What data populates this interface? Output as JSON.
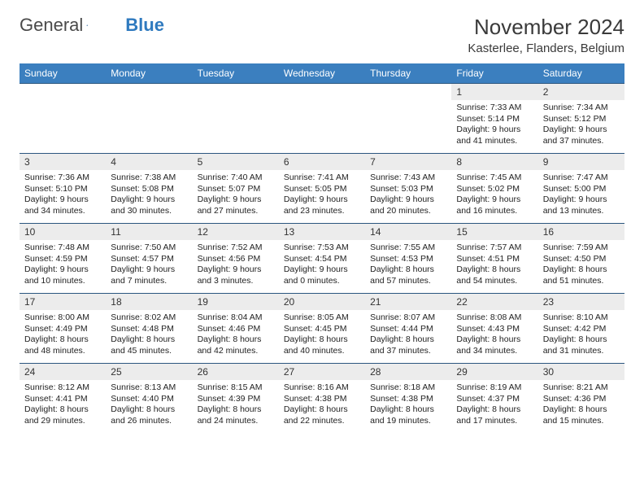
{
  "logo": {
    "text1": "General",
    "text2": "Blue"
  },
  "title": "November 2024",
  "location": "Kasterlee, Flanders, Belgium",
  "header_bg": "#3b7fbf",
  "row_border": "#2b567f",
  "daynum_bg": "#ececec",
  "text_color": "#222222",
  "page_bg": "#ffffff",
  "weekdays": [
    "Sunday",
    "Monday",
    "Tuesday",
    "Wednesday",
    "Thursday",
    "Friday",
    "Saturday"
  ],
  "weeks": [
    [
      null,
      null,
      null,
      null,
      null,
      {
        "n": "1",
        "sr": "7:33 AM",
        "ss": "5:14 PM",
        "dl": "9 hours and 41 minutes."
      },
      {
        "n": "2",
        "sr": "7:34 AM",
        "ss": "5:12 PM",
        "dl": "9 hours and 37 minutes."
      }
    ],
    [
      {
        "n": "3",
        "sr": "7:36 AM",
        "ss": "5:10 PM",
        "dl": "9 hours and 34 minutes."
      },
      {
        "n": "4",
        "sr": "7:38 AM",
        "ss": "5:08 PM",
        "dl": "9 hours and 30 minutes."
      },
      {
        "n": "5",
        "sr": "7:40 AM",
        "ss": "5:07 PM",
        "dl": "9 hours and 27 minutes."
      },
      {
        "n": "6",
        "sr": "7:41 AM",
        "ss": "5:05 PM",
        "dl": "9 hours and 23 minutes."
      },
      {
        "n": "7",
        "sr": "7:43 AM",
        "ss": "5:03 PM",
        "dl": "9 hours and 20 minutes."
      },
      {
        "n": "8",
        "sr": "7:45 AM",
        "ss": "5:02 PM",
        "dl": "9 hours and 16 minutes."
      },
      {
        "n": "9",
        "sr": "7:47 AM",
        "ss": "5:00 PM",
        "dl": "9 hours and 13 minutes."
      }
    ],
    [
      {
        "n": "10",
        "sr": "7:48 AM",
        "ss": "4:59 PM",
        "dl": "9 hours and 10 minutes."
      },
      {
        "n": "11",
        "sr": "7:50 AM",
        "ss": "4:57 PM",
        "dl": "9 hours and 7 minutes."
      },
      {
        "n": "12",
        "sr": "7:52 AM",
        "ss": "4:56 PM",
        "dl": "9 hours and 3 minutes."
      },
      {
        "n": "13",
        "sr": "7:53 AM",
        "ss": "4:54 PM",
        "dl": "9 hours and 0 minutes."
      },
      {
        "n": "14",
        "sr": "7:55 AM",
        "ss": "4:53 PM",
        "dl": "8 hours and 57 minutes."
      },
      {
        "n": "15",
        "sr": "7:57 AM",
        "ss": "4:51 PM",
        "dl": "8 hours and 54 minutes."
      },
      {
        "n": "16",
        "sr": "7:59 AM",
        "ss": "4:50 PM",
        "dl": "8 hours and 51 minutes."
      }
    ],
    [
      {
        "n": "17",
        "sr": "8:00 AM",
        "ss": "4:49 PM",
        "dl": "8 hours and 48 minutes."
      },
      {
        "n": "18",
        "sr": "8:02 AM",
        "ss": "4:48 PM",
        "dl": "8 hours and 45 minutes."
      },
      {
        "n": "19",
        "sr": "8:04 AM",
        "ss": "4:46 PM",
        "dl": "8 hours and 42 minutes."
      },
      {
        "n": "20",
        "sr": "8:05 AM",
        "ss": "4:45 PM",
        "dl": "8 hours and 40 minutes."
      },
      {
        "n": "21",
        "sr": "8:07 AM",
        "ss": "4:44 PM",
        "dl": "8 hours and 37 minutes."
      },
      {
        "n": "22",
        "sr": "8:08 AM",
        "ss": "4:43 PM",
        "dl": "8 hours and 34 minutes."
      },
      {
        "n": "23",
        "sr": "8:10 AM",
        "ss": "4:42 PM",
        "dl": "8 hours and 31 minutes."
      }
    ],
    [
      {
        "n": "24",
        "sr": "8:12 AM",
        "ss": "4:41 PM",
        "dl": "8 hours and 29 minutes."
      },
      {
        "n": "25",
        "sr": "8:13 AM",
        "ss": "4:40 PM",
        "dl": "8 hours and 26 minutes."
      },
      {
        "n": "26",
        "sr": "8:15 AM",
        "ss": "4:39 PM",
        "dl": "8 hours and 24 minutes."
      },
      {
        "n": "27",
        "sr": "8:16 AM",
        "ss": "4:38 PM",
        "dl": "8 hours and 22 minutes."
      },
      {
        "n": "28",
        "sr": "8:18 AM",
        "ss": "4:38 PM",
        "dl": "8 hours and 19 minutes."
      },
      {
        "n": "29",
        "sr": "8:19 AM",
        "ss": "4:37 PM",
        "dl": "8 hours and 17 minutes."
      },
      {
        "n": "30",
        "sr": "8:21 AM",
        "ss": "4:36 PM",
        "dl": "8 hours and 15 minutes."
      }
    ]
  ],
  "labels": {
    "sunrise": "Sunrise: ",
    "sunset": "Sunset: ",
    "daylight": "Daylight: "
  }
}
